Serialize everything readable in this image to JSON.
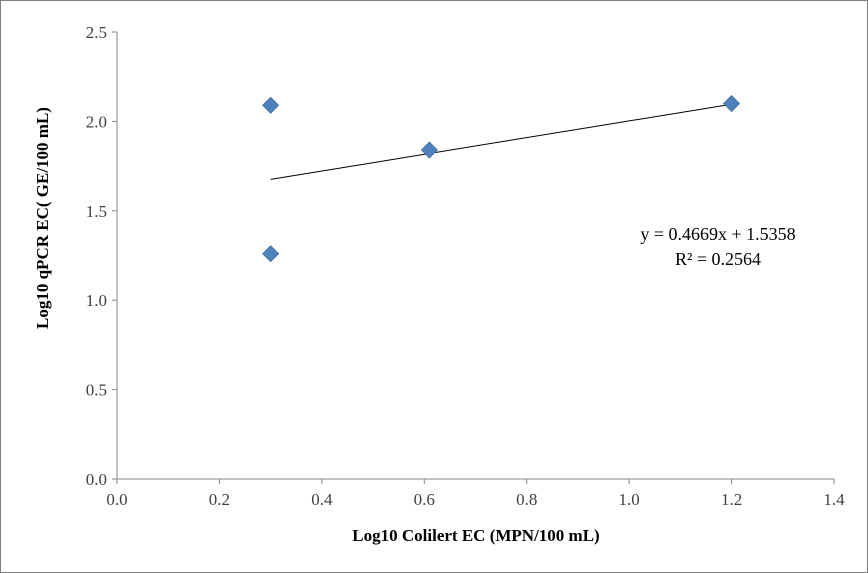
{
  "chart_data": {
    "type": "scatter",
    "xlabel": "Log10 Colilert EC (MPN/100 mL)",
    "ylabel": "Log10 qPCR EC( GE/100 mL)",
    "xlim": [
      0.0,
      1.4
    ],
    "ylim": [
      0.0,
      2.5
    ],
    "x_ticks": [
      "0.0",
      "0.2",
      "0.4",
      "0.6",
      "0.8",
      "1.0",
      "1.2",
      "1.4"
    ],
    "y_ticks": [
      "0.0",
      "0.5",
      "1.0",
      "1.5",
      "2.0",
      "2.5"
    ],
    "grid": false,
    "series": [
      {
        "marker": "diamond",
        "color": "#4f81bd",
        "points": [
          {
            "x": 0.3,
            "y": 2.09
          },
          {
            "x": 0.3,
            "y": 1.26
          },
          {
            "x": 0.61,
            "y": 1.84
          },
          {
            "x": 1.2,
            "y": 2.1
          }
        ]
      }
    ],
    "trendline": {
      "type": "linear",
      "slope": 0.4669,
      "intercept": 1.5358,
      "x_range": [
        0.3,
        1.2
      ],
      "color": "#000000",
      "equation": "y = 0.4669x + 1.5358",
      "r_squared": "R² = 0.2564"
    }
  }
}
